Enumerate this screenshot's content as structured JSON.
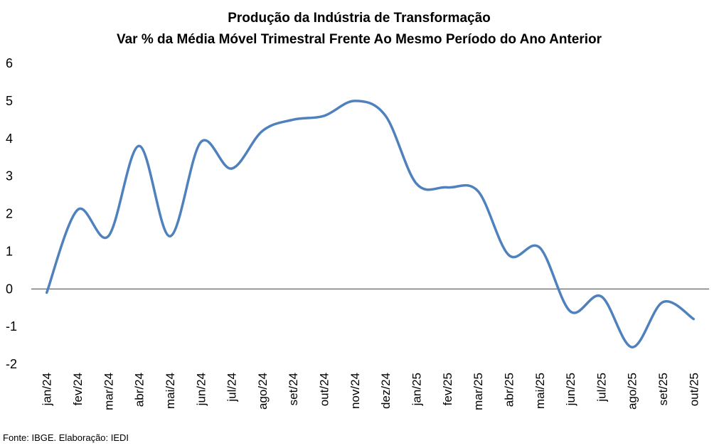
{
  "chart_data": {
    "type": "line",
    "title_line1": "Produção da Indústria de Transformação",
    "title_line2": "Var % da Média Móvel Trimestral Frente Ao Mesmo Período do Ano Anterior",
    "xlabel": "",
    "ylabel": "",
    "ylim": [
      -2,
      6
    ],
    "yticks": [
      "6",
      "5",
      "4",
      "3",
      "2",
      "1",
      "0",
      "-1",
      "-2"
    ],
    "categories": [
      "jan/24",
      "fev/24",
      "mar/24",
      "abr/24",
      "mai/24",
      "jun/24",
      "jul/24",
      "ago/24",
      "set/24",
      "out/24",
      "nov/24",
      "dez/24",
      "jan/25",
      "fev/25",
      "mar/25",
      "abr/25",
      "mai/25",
      "jun/25",
      "jul/25",
      "ago/25",
      "set/25",
      "out/25"
    ],
    "series": [
      {
        "name": "Produção da Indústria de Transformação",
        "values": [
          -0.1,
          2.1,
          1.4,
          3.8,
          1.4,
          3.9,
          3.2,
          4.2,
          4.5,
          4.6,
          5.0,
          4.6,
          2.8,
          2.7,
          2.6,
          0.9,
          1.1,
          -0.6,
          -0.2,
          -1.55,
          -0.35,
          -0.8
        ]
      }
    ],
    "line_color": "#4f81bd"
  },
  "footer": {
    "source": "Fonte: IBGE. Elaboração: IEDI"
  }
}
